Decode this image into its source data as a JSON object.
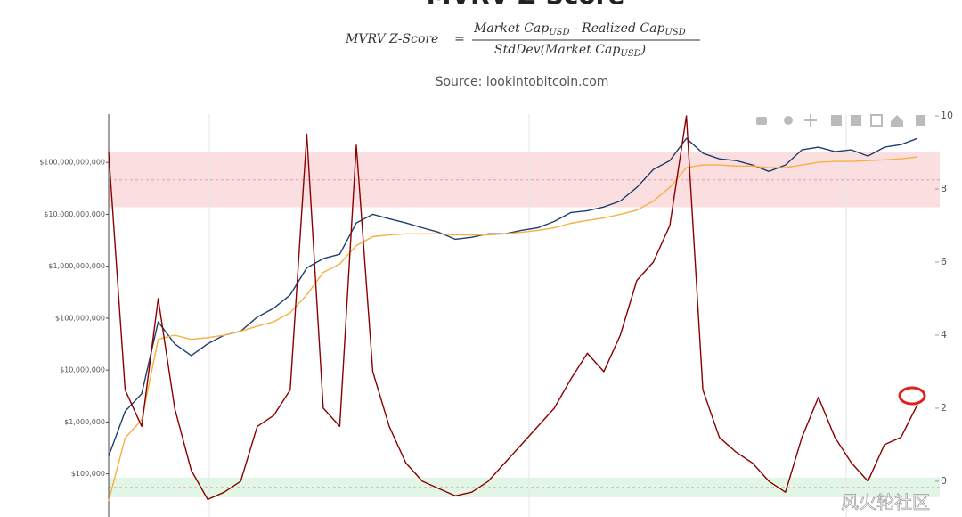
{
  "chart_data": {
    "type": "line",
    "title": "MVRV Z-Score",
    "formula": {
      "lhs": "MVRV Z-Score",
      "equals": "=",
      "numerator": [
        "Market Cap",
        "USD",
        " - Realized Cap",
        "USD"
      ],
      "denominator": [
        "StdDev(Market Cap",
        "USD",
        ")"
      ]
    },
    "subtitle": "Source: lookintobitcoin.com",
    "watermark": "风火轮社区",
    "categories": [
      null,
      null,
      null,
      null,
      null,
      null,
      null,
      null,
      null,
      null,
      null,
      null,
      null,
      null,
      null,
      null,
      null,
      null,
      null,
      null,
      null,
      null,
      null,
      null,
      null,
      null,
      null,
      null,
      null,
      null,
      null,
      null,
      null,
      null,
      null,
      null,
      null,
      null,
      null,
      null,
      null,
      null,
      null,
      null,
      null,
      null,
      null,
      null,
      null,
      null
    ],
    "ylog": true,
    "ylim": [
      16000,
      850000000000
    ],
    "yticks": [
      {
        "value": 100000,
        "label": "$100,000"
      },
      {
        "value": 1000000,
        "label": "$1,000,000"
      },
      {
        "value": 10000000,
        "label": "$10,000,000"
      },
      {
        "value": 100000000,
        "label": "$100,000,000"
      },
      {
        "value": 1000000000,
        "label": "$1,000,000,000"
      },
      {
        "value": 10000000000,
        "label": "$10,000,000,000"
      },
      {
        "value": 100000000000,
        "label": "$100,000,000,000"
      }
    ],
    "y2lim": [
      -0.93,
      10.05
    ],
    "y2ticks": [
      0,
      2,
      4,
      6,
      8,
      10
    ],
    "bands": [
      {
        "axis": "y2",
        "from": 7.5,
        "to": 9,
        "color": "#f9c9cc"
      },
      {
        "axis": "y2",
        "from": -0.44,
        "to": 0.1,
        "color": "#cdf0d4"
      }
    ],
    "series": [
      {
        "color": "#1f3f6e",
        "values": [
          220000,
          1600000,
          3500000,
          85000000,
          32000000,
          19000000,
          32000000,
          47000000,
          56000000,
          105000000,
          155000000,
          280000000,
          930000000,
          1400000000,
          1700000000,
          6800000000,
          10000000000,
          8200000000,
          6800000000,
          5500000000,
          4500000000,
          3300000000,
          3600000000,
          4200000000,
          4200000000,
          4900000000,
          5500000000,
          7300000000,
          10800000000,
          11700000000,
          13800000000,
          18000000000,
          33000000000,
          73000000000,
          108000000000,
          290000000000,
          150000000000,
          117000000000,
          108000000000,
          89000000000,
          67000000000,
          89000000000,
          174000000000,
          196000000000,
          161000000000,
          174000000000,
          132000000000,
          196000000000,
          220000000000,
          290000000000
        ]
      },
      {
        "color": "#f5b041",
        "values": [
          30000,
          490000,
          1100000,
          39000000,
          47000000,
          39000000,
          42000000,
          47000000,
          56000000,
          70000000,
          85000000,
          127000000,
          280000000,
          760000000,
          1100000000,
          2500000000,
          3700000000,
          4000000000,
          4200000000,
          4200000000,
          4200000000,
          4000000000,
          4000000000,
          4000000000,
          4200000000,
          4500000000,
          4900000000,
          5500000000,
          6700000000,
          7600000000,
          8500000000,
          10000000000,
          12000000000,
          18000000000,
          33000000000,
          79000000000,
          89000000000,
          89000000000,
          85000000000,
          85000000000,
          79000000000,
          79000000000,
          89000000000,
          100000000000,
          104000000000,
          104000000000,
          108000000000,
          112000000000,
          117000000000,
          127000000000
        ]
      },
      {
        "color": "#8b0000",
        "axis": "y2",
        "values": [
          9,
          2.5,
          1.5,
          5,
          2,
          0.3,
          -0.5,
          -0.3,
          0,
          1.5,
          1.8,
          2.5,
          9.5,
          2,
          1.5,
          9.2,
          3,
          1.5,
          0.5,
          0,
          -0.2,
          -0.4,
          -0.3,
          0,
          0.5,
          1,
          1.5,
          2,
          2.8,
          3.5,
          3,
          4,
          5.5,
          6,
          7,
          10,
          2.5,
          1.2,
          0.8,
          0.5,
          0,
          -0.3,
          1.2,
          2.3,
          1.2,
          0.5,
          0,
          1,
          1.2,
          2.1
        ]
      }
    ]
  }
}
